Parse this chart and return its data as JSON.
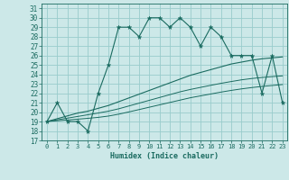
{
  "xlabel": "Humidex (Indice chaleur)",
  "xlim": [
    -0.5,
    23.5
  ],
  "ylim": [
    17,
    31.5
  ],
  "yticks": [
    17,
    18,
    19,
    20,
    21,
    22,
    23,
    24,
    25,
    26,
    27,
    28,
    29,
    30,
    31
  ],
  "xticks": [
    0,
    1,
    2,
    3,
    4,
    5,
    6,
    7,
    8,
    9,
    10,
    11,
    12,
    13,
    14,
    15,
    16,
    17,
    18,
    19,
    20,
    21,
    22,
    23
  ],
  "bg_color": "#cce8e8",
  "grid_color": "#99cccc",
  "line_color": "#1a6b60",
  "main_line": [
    19,
    21,
    19,
    19,
    18,
    22,
    25,
    29,
    29,
    28,
    30,
    30,
    29,
    30,
    29,
    27,
    29,
    28,
    26,
    26,
    26,
    22,
    26,
    21
  ],
  "line2": [
    19,
    19.3,
    19.6,
    19.9,
    20.1,
    20.4,
    20.7,
    21.1,
    21.5,
    21.9,
    22.3,
    22.7,
    23.1,
    23.5,
    23.9,
    24.2,
    24.5,
    24.8,
    25.1,
    25.3,
    25.5,
    25.65,
    25.75,
    25.85
  ],
  "line3": [
    19,
    19.18,
    19.36,
    19.54,
    19.72,
    19.9,
    20.1,
    20.35,
    20.65,
    20.95,
    21.25,
    21.55,
    21.85,
    22.15,
    22.4,
    22.62,
    22.84,
    23.05,
    23.24,
    23.42,
    23.56,
    23.67,
    23.76,
    23.84
  ],
  "line4": [
    19,
    19.08,
    19.16,
    19.25,
    19.34,
    19.44,
    19.58,
    19.78,
    20.02,
    20.27,
    20.52,
    20.77,
    21.02,
    21.27,
    21.52,
    21.72,
    21.92,
    22.12,
    22.3,
    22.46,
    22.6,
    22.72,
    22.82,
    22.92
  ]
}
